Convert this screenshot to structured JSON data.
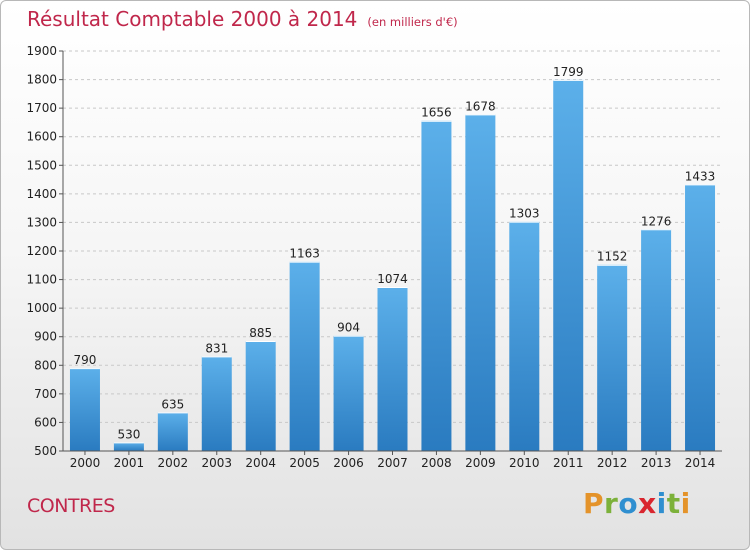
{
  "header": {
    "title": "Résultat Comptable 2000 à 2014",
    "unit": "(en milliers d'€)"
  },
  "footer": {
    "commune": "CONTRES",
    "logo_letters": [
      {
        "ch": "P",
        "color": "#e4932a"
      },
      {
        "ch": "r",
        "color": "#7cb13a"
      },
      {
        "ch": "o",
        "color": "#2f8fd0"
      },
      {
        "ch": "x",
        "color": "#d9262f"
      },
      {
        "ch": "i",
        "color": "#2f8fd0"
      },
      {
        "ch": "t",
        "color": "#7cb13a"
      },
      {
        "ch": "i",
        "color": "#e4932a"
      }
    ]
  },
  "colors": {
    "title": "#c0274b",
    "bar_top": "#5cb0ea",
    "bar_bottom": "#2a7bc0",
    "grid": "#c8c8c8"
  },
  "chart_data": {
    "type": "bar",
    "title": "Résultat Comptable 2000 à 2014",
    "xlabel": "",
    "ylabel": "(en milliers d'€)",
    "categories": [
      "2000",
      "2001",
      "2002",
      "2003",
      "2004",
      "2005",
      "2006",
      "2007",
      "2008",
      "2009",
      "2010",
      "2011",
      "2012",
      "2013",
      "2014"
    ],
    "values": [
      790,
      530,
      635,
      831,
      885,
      1163,
      904,
      1074,
      1656,
      1678,
      1303,
      1799,
      1152,
      1276,
      1433
    ],
    "ylim": [
      500,
      1900
    ],
    "yticks": [
      500,
      600,
      700,
      800,
      900,
      1000,
      1100,
      1200,
      1300,
      1400,
      1500,
      1600,
      1700,
      1800,
      1900
    ],
    "grid": true
  }
}
